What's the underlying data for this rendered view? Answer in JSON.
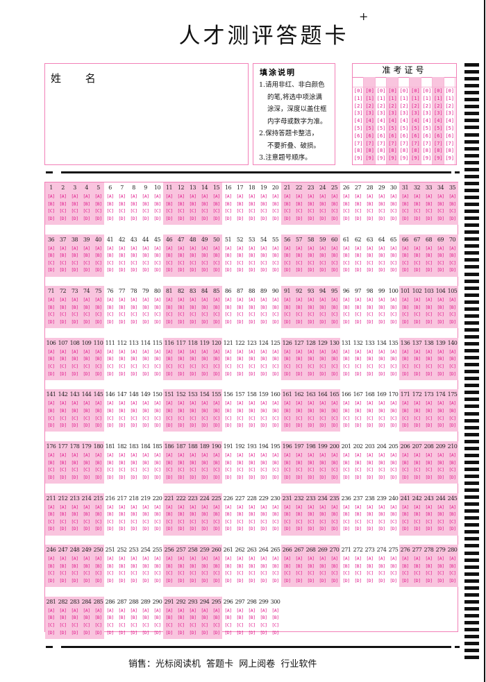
{
  "title": "人才测评答题卡",
  "plus_mark": "+",
  "name_box": {
    "label": "姓 名"
  },
  "instructions": {
    "heading": "填涂说明",
    "lines": [
      "1.请用非红、非白颜色",
      "的笔,将选中项涂满",
      "涂深，深度以盖住框",
      "内字母或数字为准。",
      "2.保持答题卡整洁，",
      "不要折叠、破损。",
      "3.注意题号顺序。"
    ]
  },
  "exam_id": {
    "title": "准考证号",
    "columns": 9,
    "digits": [
      "0",
      "1",
      "2",
      "3",
      "4",
      "5",
      "6",
      "7",
      "8",
      "9"
    ]
  },
  "answers": {
    "first_question": 1,
    "last_question": 300,
    "per_row": 35,
    "group_size": 5,
    "options": [
      "A",
      "B",
      "C",
      "D"
    ]
  },
  "footer": "销售：光标阅读机 答题卡 网上阅卷 行业软件",
  "colors": {
    "accent": "#e0168a",
    "shade": "#f9c4de",
    "border": "#f27fb7",
    "mark": "#111111"
  }
}
